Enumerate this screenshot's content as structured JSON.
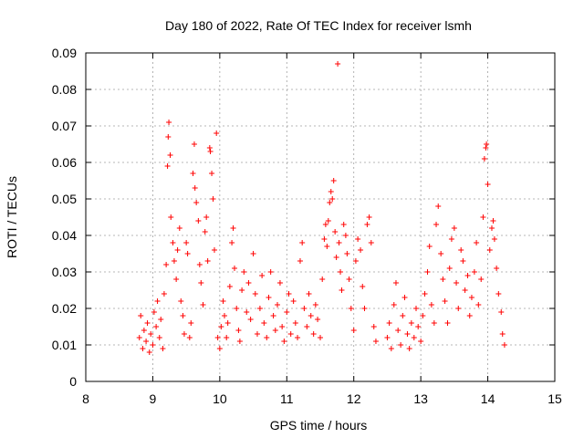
{
  "chart_data": {
    "type": "scatter",
    "title": "Day 180 of 2022, Rate Of TEC Index for receiver lsmh",
    "xlabel": "GPS time / hours",
    "ylabel": "ROTI / TECUs",
    "xlim": [
      8,
      15
    ],
    "ylim": [
      0,
      0.09
    ],
    "xticks": [
      "8",
      "9",
      "10",
      "11",
      "12",
      "13",
      "14",
      "15"
    ],
    "yticks": [
      "0",
      "0.01",
      "0.02",
      "0.03",
      "0.04",
      "0.05",
      "0.06",
      "0.07",
      "0.08",
      "0.09"
    ],
    "grid": true,
    "marker": "+",
    "series_color": "#ff0000",
    "points": [
      [
        8.8,
        0.012
      ],
      [
        8.82,
        0.018
      ],
      [
        8.85,
        0.009
      ],
      [
        8.87,
        0.014
      ],
      [
        8.9,
        0.011
      ],
      [
        8.92,
        0.016
      ],
      [
        8.95,
        0.008
      ],
      [
        8.97,
        0.013
      ],
      [
        9.0,
        0.01
      ],
      [
        9.02,
        0.019
      ],
      [
        9.05,
        0.015
      ],
      [
        9.07,
        0.022
      ],
      [
        9.1,
        0.012
      ],
      [
        9.12,
        0.017
      ],
      [
        9.15,
        0.009
      ],
      [
        9.17,
        0.024
      ],
      [
        9.2,
        0.032
      ],
      [
        9.22,
        0.059
      ],
      [
        9.23,
        0.067
      ],
      [
        9.24,
        0.071
      ],
      [
        9.26,
        0.062
      ],
      [
        9.27,
        0.045
      ],
      [
        9.3,
        0.038
      ],
      [
        9.32,
        0.033
      ],
      [
        9.35,
        0.028
      ],
      [
        9.37,
        0.036
      ],
      [
        9.4,
        0.042
      ],
      [
        9.42,
        0.022
      ],
      [
        9.45,
        0.018
      ],
      [
        9.47,
        0.013
      ],
      [
        9.5,
        0.038
      ],
      [
        9.52,
        0.035
      ],
      [
        9.55,
        0.012
      ],
      [
        9.57,
        0.016
      ],
      [
        9.6,
        0.057
      ],
      [
        9.62,
        0.065
      ],
      [
        9.63,
        0.053
      ],
      [
        9.65,
        0.049
      ],
      [
        9.68,
        0.044
      ],
      [
        9.7,
        0.032
      ],
      [
        9.72,
        0.027
      ],
      [
        9.75,
        0.021
      ],
      [
        9.78,
        0.041
      ],
      [
        9.8,
        0.045
      ],
      [
        9.82,
        0.033
      ],
      [
        9.85,
        0.064
      ],
      [
        9.86,
        0.063
      ],
      [
        9.88,
        0.057
      ],
      [
        9.9,
        0.05
      ],
      [
        9.92,
        0.036
      ],
      [
        9.95,
        0.068
      ],
      [
        9.97,
        0.012
      ],
      [
        10.0,
        0.009
      ],
      [
        10.02,
        0.015
      ],
      [
        10.05,
        0.022
      ],
      [
        10.07,
        0.018
      ],
      [
        10.1,
        0.012
      ],
      [
        10.12,
        0.016
      ],
      [
        10.15,
        0.026
      ],
      [
        10.18,
        0.038
      ],
      [
        10.2,
        0.042
      ],
      [
        10.22,
        0.031
      ],
      [
        10.25,
        0.02
      ],
      [
        10.28,
        0.014
      ],
      [
        10.3,
        0.011
      ],
      [
        10.33,
        0.025
      ],
      [
        10.36,
        0.03
      ],
      [
        10.4,
        0.019
      ],
      [
        10.43,
        0.027
      ],
      [
        10.46,
        0.017
      ],
      [
        10.5,
        0.035
      ],
      [
        10.53,
        0.024
      ],
      [
        10.56,
        0.013
      ],
      [
        10.6,
        0.02
      ],
      [
        10.63,
        0.029
      ],
      [
        10.66,
        0.016
      ],
      [
        10.7,
        0.012
      ],
      [
        10.73,
        0.023
      ],
      [
        10.76,
        0.03
      ],
      [
        10.8,
        0.018
      ],
      [
        10.83,
        0.014
      ],
      [
        10.86,
        0.021
      ],
      [
        10.9,
        0.027
      ],
      [
        10.93,
        0.015
      ],
      [
        10.96,
        0.011
      ],
      [
        11.0,
        0.019
      ],
      [
        11.03,
        0.024
      ],
      [
        11.06,
        0.013
      ],
      [
        11.1,
        0.022
      ],
      [
        11.13,
        0.016
      ],
      [
        11.16,
        0.012
      ],
      [
        11.2,
        0.033
      ],
      [
        11.23,
        0.038
      ],
      [
        11.26,
        0.02
      ],
      [
        11.3,
        0.015
      ],
      [
        11.33,
        0.024
      ],
      [
        11.36,
        0.018
      ],
      [
        11.4,
        0.013
      ],
      [
        11.43,
        0.021
      ],
      [
        11.46,
        0.017
      ],
      [
        11.5,
        0.012
      ],
      [
        11.53,
        0.028
      ],
      [
        11.56,
        0.039
      ],
      [
        11.58,
        0.043
      ],
      [
        11.6,
        0.037
      ],
      [
        11.62,
        0.044
      ],
      [
        11.64,
        0.049
      ],
      [
        11.66,
        0.052
      ],
      [
        11.68,
        0.05
      ],
      [
        11.7,
        0.055
      ],
      [
        11.72,
        0.041
      ],
      [
        11.74,
        0.034
      ],
      [
        11.76,
        0.087
      ],
      [
        11.78,
        0.038
      ],
      [
        11.8,
        0.03
      ],
      [
        11.82,
        0.025
      ],
      [
        11.85,
        0.043
      ],
      [
        11.88,
        0.04
      ],
      [
        11.9,
        0.035
      ],
      [
        11.93,
        0.028
      ],
      [
        11.96,
        0.02
      ],
      [
        12.0,
        0.014
      ],
      [
        12.03,
        0.033
      ],
      [
        12.06,
        0.039
      ],
      [
        12.1,
        0.036
      ],
      [
        12.13,
        0.026
      ],
      [
        12.16,
        0.02
      ],
      [
        12.2,
        0.043
      ],
      [
        12.23,
        0.045
      ],
      [
        12.26,
        0.038
      ],
      [
        12.3,
        0.015
      ],
      [
        12.33,
        0.011
      ],
      [
        12.5,
        0.012
      ],
      [
        12.53,
        0.016
      ],
      [
        12.56,
        0.009
      ],
      [
        12.6,
        0.021
      ],
      [
        12.63,
        0.027
      ],
      [
        12.66,
        0.014
      ],
      [
        12.7,
        0.01
      ],
      [
        12.73,
        0.018
      ],
      [
        12.76,
        0.023
      ],
      [
        12.8,
        0.013
      ],
      [
        12.83,
        0.009
      ],
      [
        12.86,
        0.016
      ],
      [
        12.9,
        0.012
      ],
      [
        12.93,
        0.02
      ],
      [
        12.96,
        0.015
      ],
      [
        13.0,
        0.011
      ],
      [
        13.03,
        0.018
      ],
      [
        13.06,
        0.024
      ],
      [
        13.1,
        0.03
      ],
      [
        13.13,
        0.037
      ],
      [
        13.16,
        0.021
      ],
      [
        13.2,
        0.016
      ],
      [
        13.23,
        0.043
      ],
      [
        13.26,
        0.048
      ],
      [
        13.3,
        0.035
      ],
      [
        13.33,
        0.028
      ],
      [
        13.36,
        0.022
      ],
      [
        13.4,
        0.016
      ],
      [
        13.43,
        0.031
      ],
      [
        13.46,
        0.039
      ],
      [
        13.5,
        0.042
      ],
      [
        13.53,
        0.027
      ],
      [
        13.56,
        0.02
      ],
      [
        13.6,
        0.036
      ],
      [
        13.63,
        0.033
      ],
      [
        13.66,
        0.025
      ],
      [
        13.7,
        0.029
      ],
      [
        13.73,
        0.018
      ],
      [
        13.76,
        0.023
      ],
      [
        13.8,
        0.03
      ],
      [
        13.83,
        0.038
      ],
      [
        13.86,
        0.021
      ],
      [
        13.9,
        0.028
      ],
      [
        13.93,
        0.045
      ],
      [
        13.95,
        0.061
      ],
      [
        13.97,
        0.064
      ],
      [
        13.98,
        0.065
      ],
      [
        14.0,
        0.054
      ],
      [
        14.03,
        0.036
      ],
      [
        14.06,
        0.042
      ],
      [
        14.08,
        0.044
      ],
      [
        14.1,
        0.039
      ],
      [
        14.13,
        0.031
      ],
      [
        14.16,
        0.024
      ],
      [
        14.2,
        0.019
      ],
      [
        14.22,
        0.013
      ],
      [
        14.25,
        0.01
      ]
    ]
  }
}
